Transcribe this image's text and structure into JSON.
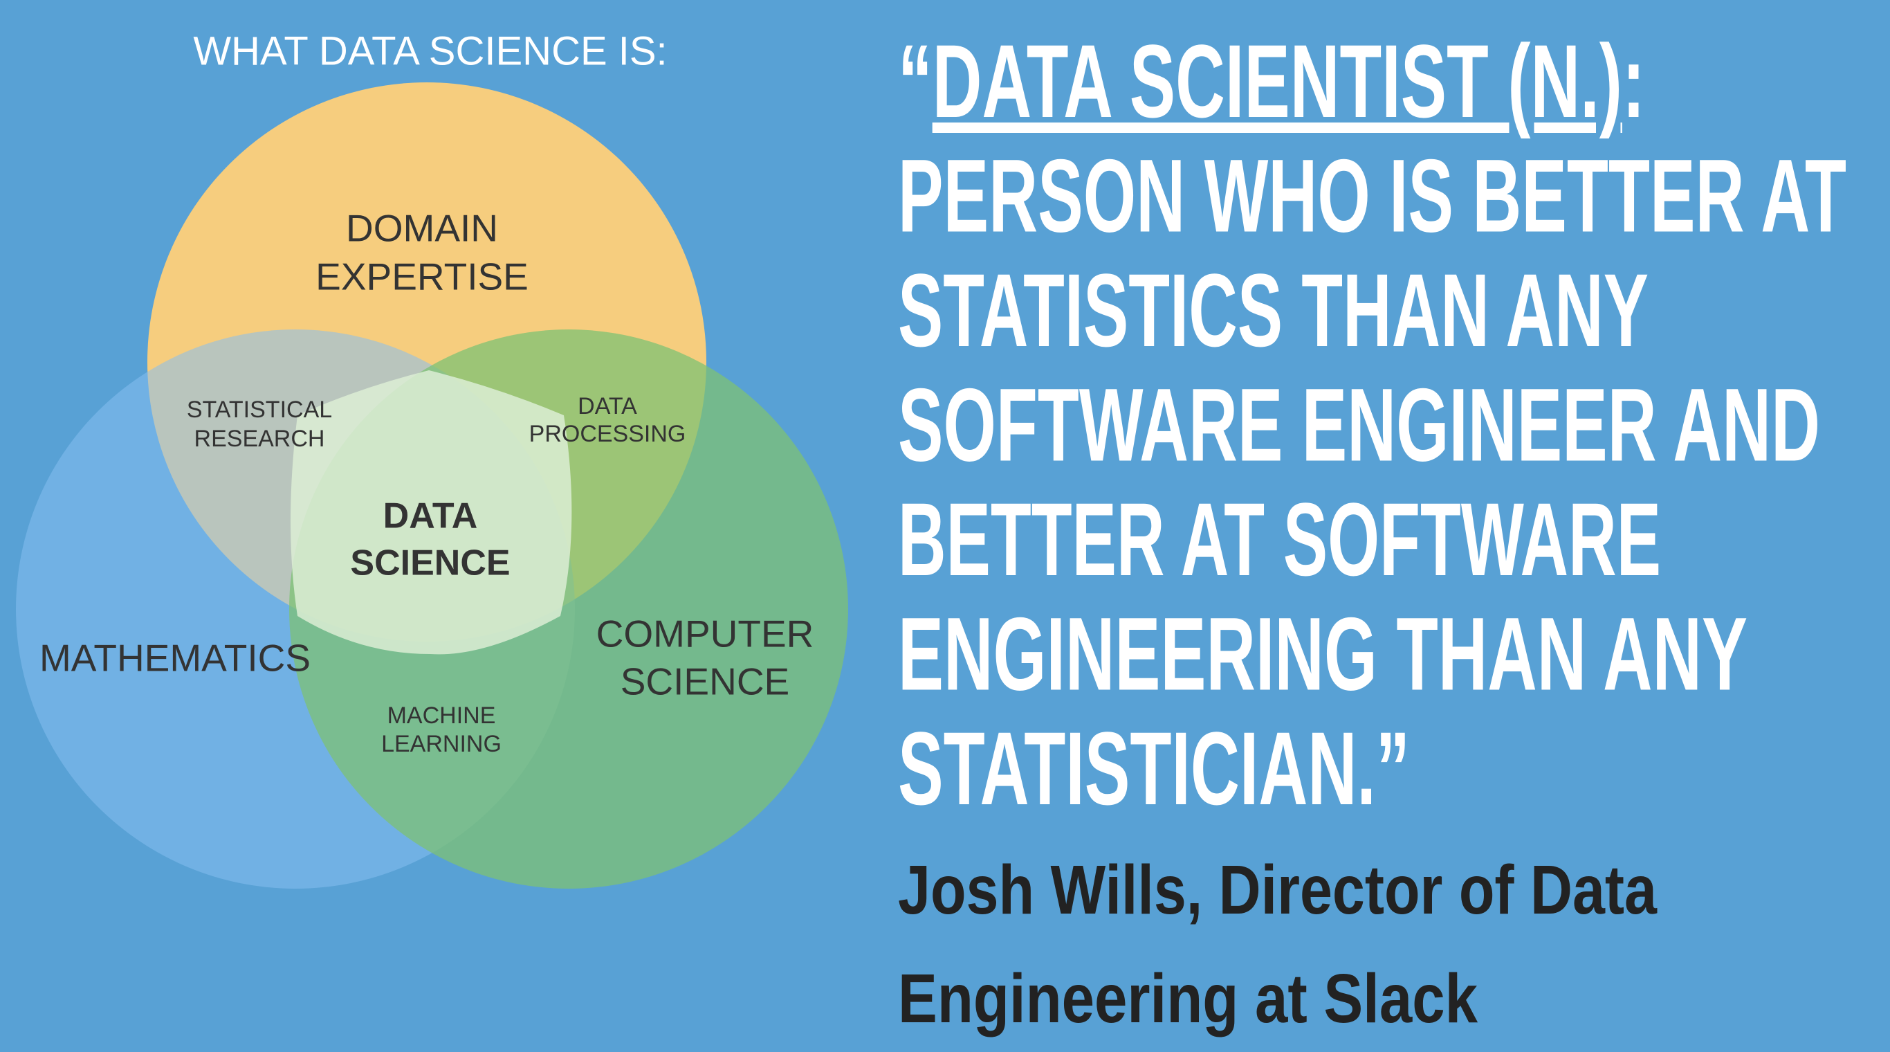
{
  "header": {
    "title": "WHAT DATA SCIENCE IS:"
  },
  "venn": {
    "sets": [
      "DOMAIN EXPERTISE",
      "MATHEMATICS",
      "COMPUTER SCIENCE"
    ],
    "domain": [
      "DOMAIN",
      "EXPERTISE"
    ],
    "mathematics": "MATHEMATICS",
    "computer_science": [
      "COMPUTER",
      "SCIENCE"
    ],
    "statistical_research": [
      "STATISTICAL",
      "RESEARCH"
    ],
    "data_processing": [
      "DATA",
      "PROCESSING"
    ],
    "machine_learning": [
      "MACHINE",
      "LEARNING"
    ],
    "data_science": [
      "DATA",
      "SCIENCE"
    ]
  },
  "quote": {
    "open": "“",
    "term": "DATA SCIENTIST (N.)",
    "term_end": ":",
    "lines": [
      "PERSON WHO IS BETTER AT",
      "STATISTICS THAN ANY",
      "SOFTWARE ENGINEER AND",
      "BETTER AT SOFTWARE",
      "ENGINEERING THAN ANY",
      "STATISTICIAN.”"
    ]
  },
  "attribution": [
    "Josh Wills, Director of Data",
    "Engineering at Slack"
  ]
}
